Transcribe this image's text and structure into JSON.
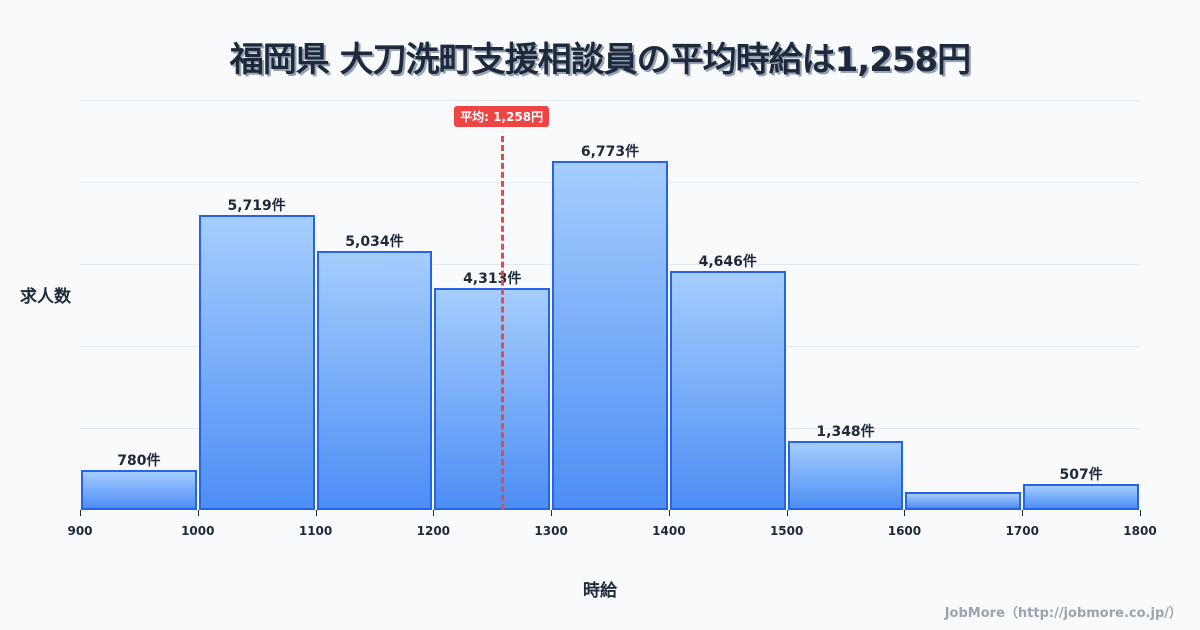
{
  "title": "福岡県 大刀洗町支援相談員の平均時給は1,258円",
  "ylabel": "求人数",
  "xlabel": "時給",
  "credit": "JobMore（http://jobmore.co.jp/）",
  "average": {
    "value": 1258,
    "label": "平均: 1,258円",
    "color": "#ef4444"
  },
  "chart_data": {
    "type": "bar",
    "title": "福岡県 大刀洗町支援相談員の平均時給は1,258円",
    "xlabel": "時給",
    "ylabel": "求人数",
    "bins": [
      [
        900,
        1000
      ],
      [
        1000,
        1100
      ],
      [
        1100,
        1200
      ],
      [
        1200,
        1300
      ],
      [
        1300,
        1400
      ],
      [
        1400,
        1500
      ],
      [
        1500,
        1600
      ],
      [
        1600,
        1700
      ],
      [
        1700,
        1800
      ]
    ],
    "categories": [
      "900-1000",
      "1000-1100",
      "1100-1200",
      "1200-1300",
      "1300-1400",
      "1400-1500",
      "1500-1600",
      "1600-1700",
      "1700-1800"
    ],
    "values": [
      780,
      5719,
      5034,
      4313,
      6773,
      4646,
      1348,
      350,
      507
    ],
    "value_labels": [
      "780件",
      "5,719件",
      "5,034件",
      "4,313件",
      "6,773件",
      "4,646件",
      "1,348件",
      "",
      "507件"
    ],
    "x_ticks": [
      "900",
      "1000",
      "1100",
      "1200",
      "1300",
      "1400",
      "1500",
      "1600",
      "1700",
      "1800"
    ],
    "xlim": [
      900,
      1800
    ],
    "ylim": [
      0,
      7960
    ],
    "grid": true,
    "annotations": [
      {
        "type": "vline",
        "x": 1258,
        "label": "平均: 1,258円"
      }
    ],
    "bar_color": "#4d8ef5",
    "bar_edge_color": "#2563eb"
  }
}
